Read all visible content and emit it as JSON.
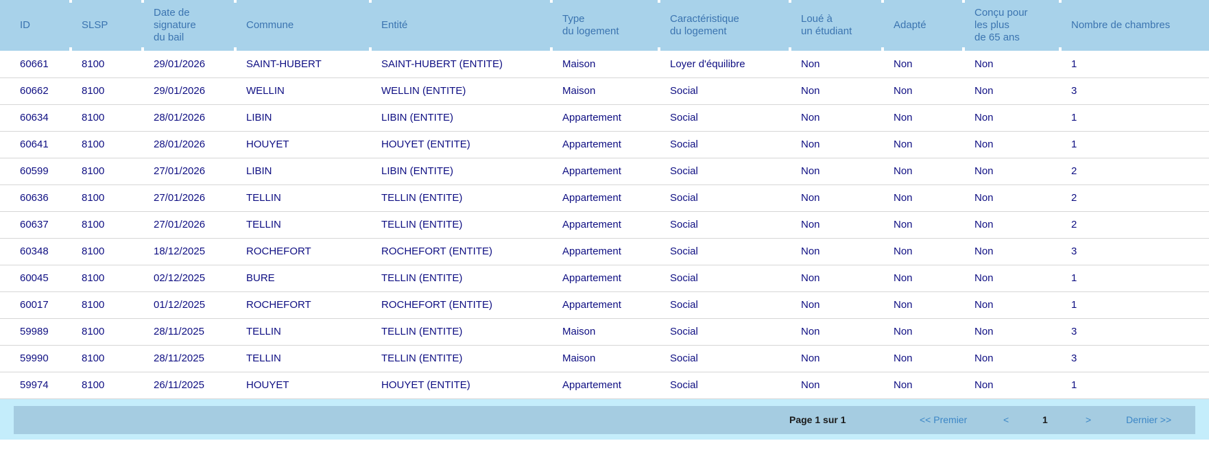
{
  "colors": {
    "header_bg": "#a8d2ea",
    "header_text": "#3b74b0",
    "cell_text": "#0e0e82",
    "row_divider": "#d6d6d6",
    "footer_bg": "#c4edfb",
    "pager_bar_bg": "#a5cce1",
    "pager_link": "#3c86c6",
    "pager_text": "#1a1a1a"
  },
  "table": {
    "columns": [
      {
        "key": "id",
        "label": "ID"
      },
      {
        "key": "slsp",
        "label": "SLSP"
      },
      {
        "key": "date_signature",
        "label": "Date de\nsignature\ndu bail"
      },
      {
        "key": "commune",
        "label": "Commune"
      },
      {
        "key": "entite",
        "label": "Entité"
      },
      {
        "key": "type_logement",
        "label": "Type\ndu logement"
      },
      {
        "key": "caracteristique",
        "label": "Caractéristique\ndu logement"
      },
      {
        "key": "loue_etudiant",
        "label": "Loué à\nun étudiant"
      },
      {
        "key": "adapte",
        "label": "Adapté"
      },
      {
        "key": "concu_65",
        "label": "Conçu pour\nles plus\nde 65 ans"
      },
      {
        "key": "nombre_chambres",
        "label": "Nombre de chambres"
      }
    ],
    "rows": [
      {
        "id": "60661",
        "slsp": "8100",
        "date_signature": "29/01/2026",
        "commune": "SAINT-HUBERT",
        "entite": "SAINT-HUBERT (ENTITE)",
        "type_logement": "Maison",
        "caracteristique": "Loyer d'équilibre",
        "loue_etudiant": "Non",
        "adapte": "Non",
        "concu_65": "Non",
        "nombre_chambres": "1"
      },
      {
        "id": "60662",
        "slsp": "8100",
        "date_signature": "29/01/2026",
        "commune": "WELLIN",
        "entite": "WELLIN (ENTITE)",
        "type_logement": "Maison",
        "caracteristique": "Social",
        "loue_etudiant": "Non",
        "adapte": "Non",
        "concu_65": "Non",
        "nombre_chambres": "3"
      },
      {
        "id": "60634",
        "slsp": "8100",
        "date_signature": "28/01/2026",
        "commune": "LIBIN",
        "entite": "LIBIN (ENTITE)",
        "type_logement": "Appartement",
        "caracteristique": "Social",
        "loue_etudiant": "Non",
        "adapte": "Non",
        "concu_65": "Non",
        "nombre_chambres": "1"
      },
      {
        "id": "60641",
        "slsp": "8100",
        "date_signature": "28/01/2026",
        "commune": "HOUYET",
        "entite": "HOUYET (ENTITE)",
        "type_logement": "Appartement",
        "caracteristique": "Social",
        "loue_etudiant": "Non",
        "adapte": "Non",
        "concu_65": "Non",
        "nombre_chambres": "1"
      },
      {
        "id": "60599",
        "slsp": "8100",
        "date_signature": "27/01/2026",
        "commune": "LIBIN",
        "entite": "LIBIN (ENTITE)",
        "type_logement": "Appartement",
        "caracteristique": "Social",
        "loue_etudiant": "Non",
        "adapte": "Non",
        "concu_65": "Non",
        "nombre_chambres": "2"
      },
      {
        "id": "60636",
        "slsp": "8100",
        "date_signature": "27/01/2026",
        "commune": "TELLIN",
        "entite": "TELLIN (ENTITE)",
        "type_logement": "Appartement",
        "caracteristique": "Social",
        "loue_etudiant": "Non",
        "adapte": "Non",
        "concu_65": "Non",
        "nombre_chambres": "2"
      },
      {
        "id": "60637",
        "slsp": "8100",
        "date_signature": "27/01/2026",
        "commune": "TELLIN",
        "entite": "TELLIN (ENTITE)",
        "type_logement": "Appartement",
        "caracteristique": "Social",
        "loue_etudiant": "Non",
        "adapte": "Non",
        "concu_65": "Non",
        "nombre_chambres": "2"
      },
      {
        "id": "60348",
        "slsp": "8100",
        "date_signature": "18/12/2025",
        "commune": "ROCHEFORT",
        "entite": "ROCHEFORT (ENTITE)",
        "type_logement": "Appartement",
        "caracteristique": "Social",
        "loue_etudiant": "Non",
        "adapte": "Non",
        "concu_65": "Non",
        "nombre_chambres": "3"
      },
      {
        "id": "60045",
        "slsp": "8100",
        "date_signature": "02/12/2025",
        "commune": "BURE",
        "entite": "TELLIN (ENTITE)",
        "type_logement": "Appartement",
        "caracteristique": "Social",
        "loue_etudiant": "Non",
        "adapte": "Non",
        "concu_65": "Non",
        "nombre_chambres": "1"
      },
      {
        "id": "60017",
        "slsp": "8100",
        "date_signature": "01/12/2025",
        "commune": "ROCHEFORT",
        "entite": "ROCHEFORT (ENTITE)",
        "type_logement": "Appartement",
        "caracteristique": "Social",
        "loue_etudiant": "Non",
        "adapte": "Non",
        "concu_65": "Non",
        "nombre_chambres": "1"
      },
      {
        "id": "59989",
        "slsp": "8100",
        "date_signature": "28/11/2025",
        "commune": "TELLIN",
        "entite": "TELLIN (ENTITE)",
        "type_logement": "Maison",
        "caracteristique": "Social",
        "loue_etudiant": "Non",
        "adapte": "Non",
        "concu_65": "Non",
        "nombre_chambres": "3"
      },
      {
        "id": "59990",
        "slsp": "8100",
        "date_signature": "28/11/2025",
        "commune": "TELLIN",
        "entite": "TELLIN (ENTITE)",
        "type_logement": "Maison",
        "caracteristique": "Social",
        "loue_etudiant": "Non",
        "adapte": "Non",
        "concu_65": "Non",
        "nombre_chambres": "3"
      },
      {
        "id": "59974",
        "slsp": "8100",
        "date_signature": "26/11/2025",
        "commune": "HOUYET",
        "entite": "HOUYET (ENTITE)",
        "type_logement": "Appartement",
        "caracteristique": "Social",
        "loue_etudiant": "Non",
        "adapte": "Non",
        "concu_65": "Non",
        "nombre_chambres": "1"
      }
    ]
  },
  "pagination": {
    "page_info": "Page 1 sur 1",
    "first_label": "<< Premier",
    "prev_label": "<",
    "current_page": "1",
    "next_label": ">",
    "last_label": "Dernier >>"
  }
}
